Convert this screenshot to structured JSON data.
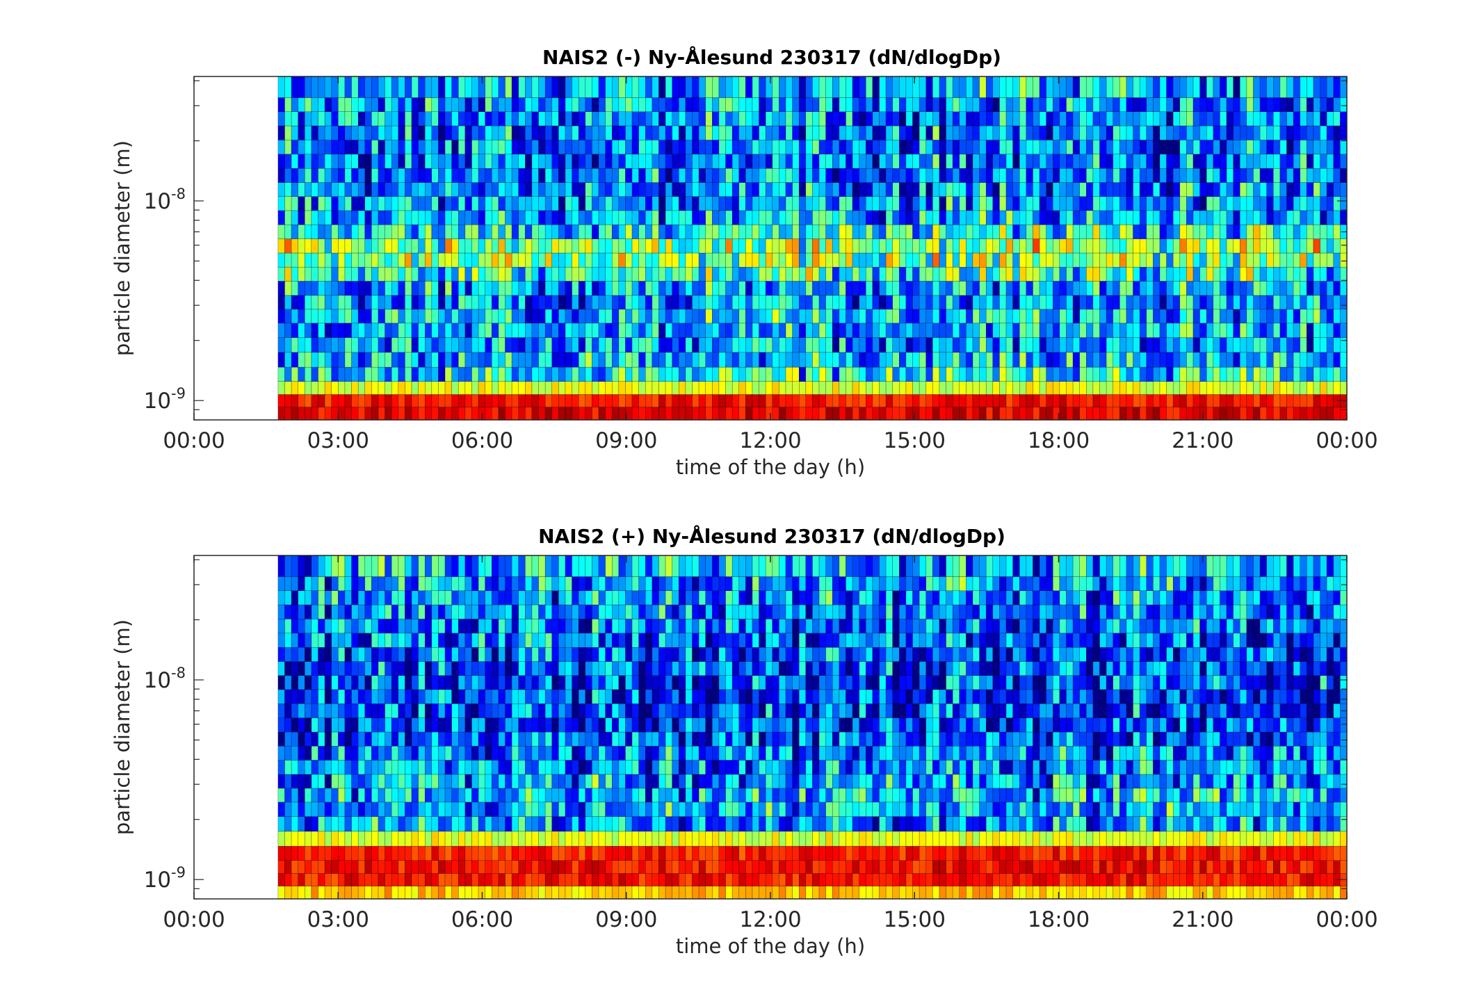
{
  "chart_data": [
    {
      "type": "heatmap",
      "title": "NAIS2 (-) Ny-Ålesund 230317 (dN/dlogDp)",
      "xlabel": "time of the day (h)",
      "ylabel": "particle diameter (m)",
      "xticks": [
        "00:00",
        "03:00",
        "06:00",
        "09:00",
        "12:00",
        "15:00",
        "18:00",
        "21:00",
        "00:00"
      ],
      "xlim_hours": [
        0,
        24
      ],
      "yscale": "log",
      "ylim_m": [
        8e-10,
        4.2e-08
      ],
      "yticks": [
        {
          "exp": "-9",
          "value": 1e-09
        },
        {
          "exp": "-8",
          "value": 1e-08
        }
      ],
      "data_start_hour": 1.75,
      "colormap": "jet",
      "size_bins_m": [
        8.6e-10,
        1e-09,
        1.15e-09,
        1.35e-09,
        1.6e-09,
        1.9e-09,
        2.25e-09,
        2.65e-09,
        3.1e-09,
        3.65e-09,
        4.3e-09,
        5.05e-09,
        5.95e-09,
        7e-09,
        8.25e-09,
        9.7e-09,
        1.14e-08,
        1.34e-08,
        1.58e-08,
        1.86e-08,
        2.19e-08,
        2.58e-08,
        3.03e-08,
        3.57e-08
      ],
      "mean_level_by_bin": [
        0.9,
        0.86,
        0.6,
        0.38,
        0.32,
        0.28,
        0.3,
        0.32,
        0.28,
        0.3,
        0.42,
        0.5,
        0.52,
        0.4,
        0.3,
        0.28,
        0.26,
        0.25,
        0.25,
        0.25,
        0.26,
        0.27,
        0.28,
        0.3
      ]
    },
    {
      "type": "heatmap",
      "title": "NAIS2 (+) Ny-Ålesund 230317 (dN/dlogDp)",
      "xlabel": "time of the day (h)",
      "ylabel": "particle diameter (m)",
      "xticks": [
        "00:00",
        "03:00",
        "06:00",
        "09:00",
        "12:00",
        "15:00",
        "18:00",
        "21:00",
        "00:00"
      ],
      "xlim_hours": [
        0,
        24
      ],
      "yscale": "log",
      "ylim_m": [
        8e-10,
        4.2e-08
      ],
      "yticks": [
        {
          "exp": "-9",
          "value": 1e-09
        },
        {
          "exp": "-8",
          "value": 1e-08
        }
      ],
      "data_start_hour": 1.75,
      "colormap": "jet",
      "size_bins_m": [
        8.6e-10,
        1e-09,
        1.15e-09,
        1.35e-09,
        1.6e-09,
        1.9e-09,
        2.25e-09,
        2.65e-09,
        3.1e-09,
        3.65e-09,
        4.3e-09,
        5.05e-09,
        5.95e-09,
        7e-09,
        8.25e-09,
        9.7e-09,
        1.14e-08,
        1.34e-08,
        1.58e-08,
        1.86e-08,
        2.19e-08,
        2.58e-08,
        3.03e-08,
        3.57e-08
      ],
      "mean_level_by_bin": [
        0.68,
        0.86,
        0.87,
        0.85,
        0.6,
        0.28,
        0.3,
        0.32,
        0.3,
        0.28,
        0.26,
        0.22,
        0.2,
        0.2,
        0.19,
        0.19,
        0.2,
        0.21,
        0.22,
        0.23,
        0.25,
        0.28,
        0.3,
        0.32
      ]
    }
  ]
}
